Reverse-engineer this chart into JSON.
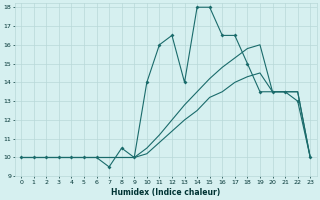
{
  "xlabel": "Humidex (Indice chaleur)",
  "xlim": [
    -0.5,
    23.5
  ],
  "ylim": [
    9,
    18.2
  ],
  "yticks": [
    9,
    10,
    11,
    12,
    13,
    14,
    15,
    16,
    17,
    18
  ],
  "xticks": [
    0,
    1,
    2,
    3,
    4,
    5,
    6,
    7,
    8,
    9,
    10,
    11,
    12,
    13,
    14,
    15,
    16,
    17,
    18,
    19,
    20,
    21,
    22,
    23
  ],
  "background_color": "#d6f0f0",
  "grid_color": "#b8d8d8",
  "line_color": "#1a6b6b",
  "line1_x": [
    0,
    1,
    2,
    3,
    4,
    5,
    6,
    7,
    8,
    9,
    10,
    11,
    12,
    13,
    14,
    15,
    16,
    17,
    18,
    19,
    20,
    21,
    22,
    23
  ],
  "line1_y": [
    10,
    10,
    10,
    10,
    10,
    10,
    10,
    9.5,
    10.5,
    10,
    14,
    16,
    16.5,
    14,
    18,
    18,
    16.5,
    16.5,
    15,
    13.5,
    13.5,
    13.5,
    13,
    10
  ],
  "line2_x": [
    0,
    2,
    3,
    4,
    5,
    6,
    7,
    8,
    9,
    10,
    11,
    12,
    13,
    14,
    15,
    16,
    17,
    18,
    19,
    20,
    21,
    22,
    23
  ],
  "line2_y": [
    10,
    10,
    10,
    10,
    10,
    10,
    10,
    10,
    10,
    10.5,
    11.2,
    12,
    12.8,
    13.5,
    14.2,
    14.8,
    15.3,
    15.8,
    16.0,
    13.5,
    13.5,
    13.5,
    10
  ],
  "line3_x": [
    0,
    2,
    3,
    4,
    5,
    6,
    7,
    8,
    9,
    10,
    11,
    12,
    13,
    14,
    15,
    16,
    17,
    18,
    19,
    20,
    21,
    22,
    23
  ],
  "line3_y": [
    10,
    10,
    10,
    10,
    10,
    10,
    10,
    10,
    10,
    10.2,
    10.8,
    11.4,
    12.0,
    12.5,
    13.2,
    13.5,
    14.0,
    14.3,
    14.5,
    13.5,
    13.5,
    13.5,
    10
  ]
}
